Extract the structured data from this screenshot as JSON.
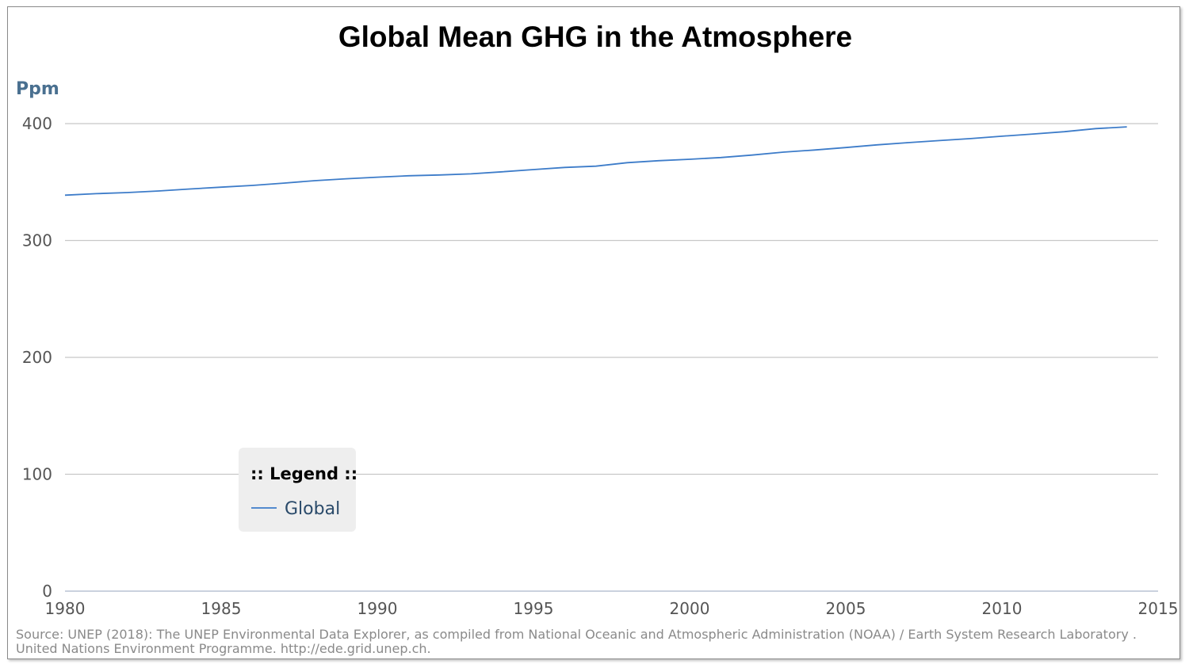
{
  "chart_data": {
    "type": "line",
    "title": "Global Mean GHG in the Atmosphere",
    "ylabel": "Ppm",
    "xlabel": "",
    "xlim": [
      1980,
      2015
    ],
    "ylim": [
      0,
      400
    ],
    "x_ticks": [
      1980,
      1985,
      1990,
      1995,
      2000,
      2005,
      2010,
      2015
    ],
    "y_ticks": [
      0,
      100,
      200,
      300,
      400
    ],
    "grid": "horizontal",
    "legend": {
      "title": ":: Legend ::",
      "placement": "lower-left"
    },
    "series": [
      {
        "name": "Global",
        "color": "#3d7cc9",
        "x": [
          1980,
          1981,
          1982,
          1983,
          1984,
          1985,
          1986,
          1987,
          1988,
          1989,
          1990,
          1991,
          1992,
          1993,
          1994,
          1995,
          1996,
          1997,
          1998,
          1999,
          2000,
          2001,
          2002,
          2003,
          2004,
          2005,
          2006,
          2007,
          2008,
          2009,
          2010,
          2011,
          2012,
          2013,
          2014
        ],
        "values": [
          338.8,
          340.1,
          341.0,
          342.4,
          344.1,
          345.6,
          347.1,
          349.1,
          351.2,
          352.8,
          354.2,
          355.4,
          356.1,
          357.0,
          358.8,
          360.7,
          362.5,
          363.6,
          366.6,
          368.3,
          369.5,
          371.0,
          373.1,
          375.6,
          377.4,
          379.5,
          381.8,
          383.7,
          385.5,
          387.2,
          389.2,
          391.1,
          393.1,
          395.7,
          397.2
        ]
      }
    ],
    "source": "Source: UNEP (2018): The UNEP Environmental Data Explorer, as compiled from National Oceanic and Atmospheric Administration (NOAA) / Earth System Research Laboratory . United Nations Environment Programme. http://ede.grid.unep.ch."
  }
}
